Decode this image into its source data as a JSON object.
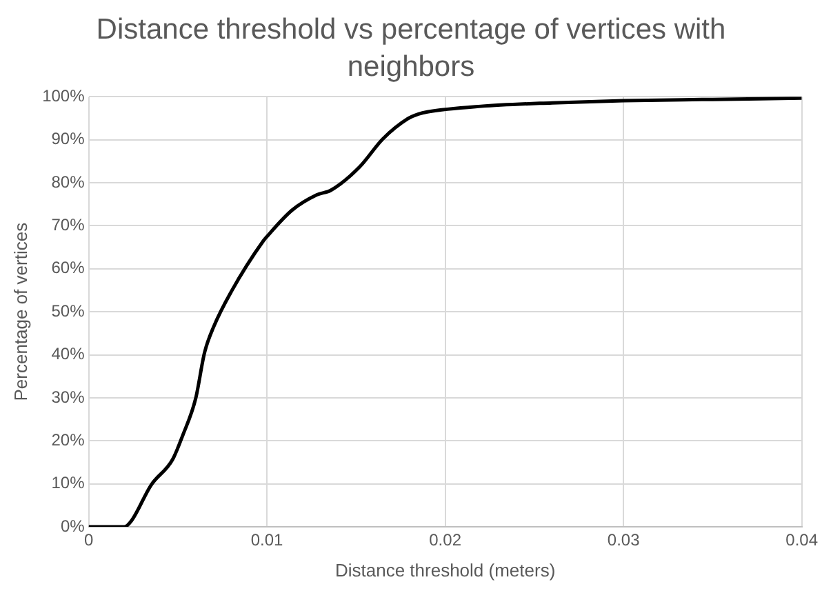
{
  "chart_data": {
    "type": "line",
    "title": "Distance threshold vs percentage of vertices with neighbors",
    "xlabel": "Distance threshold (meters)",
    "ylabel": "Percentage of vertices",
    "x": [
      0,
      0.002,
      0.0024,
      0.0035,
      0.0047,
      0.0053,
      0.006,
      0.0065,
      0.007,
      0.008,
      0.0098,
      0.01,
      0.0114,
      0.0128,
      0.0136,
      0.0152,
      0.0165,
      0.0179,
      0.0185,
      0.019,
      0.022,
      0.026,
      0.03,
      0.035,
      0.04
    ],
    "series": [
      {
        "color": "#000000",
        "values": [
          0,
          0,
          1.4,
          9.7,
          15.6,
          21.5,
          29.8,
          40.5,
          46.4,
          54.7,
          66.5,
          67.5,
          73.6,
          77.2,
          78.3,
          83.7,
          90.2,
          94.9,
          96,
          96.5,
          97.8,
          98.6,
          99.1,
          99.4,
          99.7
        ]
      }
    ],
    "xlim": [
      0,
      0.04
    ],
    "xticks": [
      0,
      0.01,
      0.02,
      0.03,
      0.04
    ],
    "ylim": [
      0,
      100
    ],
    "yticks": [
      {
        "value": 0,
        "label": "0%"
      },
      {
        "value": 10,
        "label": "10%"
      },
      {
        "value": 20,
        "label": "20%"
      },
      {
        "value": 30,
        "label": "30%"
      },
      {
        "value": 40,
        "label": "40%"
      },
      {
        "value": 50,
        "label": "50%"
      },
      {
        "value": 60,
        "label": "60%"
      },
      {
        "value": 70,
        "label": "70%"
      },
      {
        "value": 80,
        "label": "80%"
      },
      {
        "value": 90,
        "label": "90%"
      },
      {
        "value": 100,
        "label": "100%"
      }
    ],
    "grid": true,
    "legend": false,
    "marker": "none",
    "line_style": "solid"
  }
}
